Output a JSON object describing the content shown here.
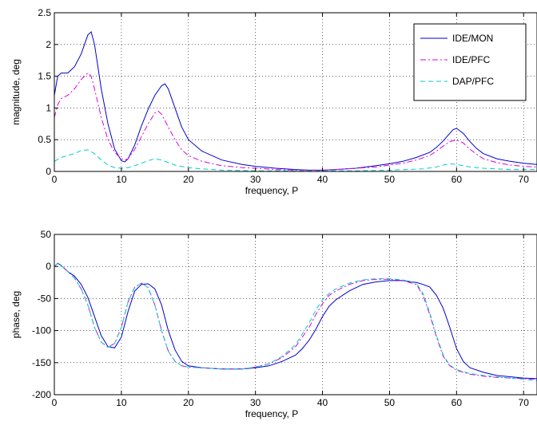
{
  "chart_data": [
    {
      "type": "line",
      "xlabel": "frequency, P",
      "ylabel": "magnitude, deg",
      "xlim": [
        0,
        72
      ],
      "ylim": [
        0,
        2.5
      ],
      "xticks": [
        0,
        10,
        20,
        30,
        40,
        50,
        60,
        70
      ],
      "yticks": [
        0,
        0.5,
        1,
        1.5,
        2,
        2.5
      ],
      "xtick_labels": [
        "0",
        "10",
        "20",
        "30",
        "40",
        "50",
        "60",
        "70"
      ],
      "ytick_labels": [
        "0",
        "0.5",
        "1",
        "1.5",
        "2",
        "2.5"
      ],
      "grid": true,
      "legend_position": "top-right",
      "series": [
        {
          "name": "IDE/MON",
          "color": "#0000cc",
          "dash": "solid",
          "x": [
            0,
            0.5,
            1,
            2,
            3,
            4,
            5,
            5.5,
            6,
            7,
            8,
            9,
            10,
            10.5,
            11,
            12,
            13,
            14,
            15,
            16,
            16.5,
            17,
            18,
            19,
            20,
            22,
            25,
            28,
            30,
            33,
            36,
            38,
            40,
            42,
            45,
            48,
            50,
            52,
            54,
            56,
            57,
            58,
            59,
            59.5,
            60,
            61,
            62,
            63,
            64,
            66,
            68,
            70,
            72
          ],
          "y": [
            1.2,
            1.5,
            1.55,
            1.55,
            1.65,
            1.85,
            2.15,
            2.2,
            2.0,
            1.3,
            0.75,
            0.35,
            0.17,
            0.15,
            0.2,
            0.42,
            0.72,
            0.98,
            1.2,
            1.35,
            1.38,
            1.3,
            1.0,
            0.7,
            0.5,
            0.32,
            0.18,
            0.11,
            0.08,
            0.05,
            0.03,
            0.02,
            0.02,
            0.03,
            0.05,
            0.09,
            0.12,
            0.16,
            0.22,
            0.3,
            0.38,
            0.48,
            0.6,
            0.66,
            0.68,
            0.6,
            0.47,
            0.36,
            0.28,
            0.2,
            0.16,
            0.13,
            0.11
          ]
        },
        {
          "name": "IDE/PFC",
          "color": "#dd00dd",
          "dash": "dashdot",
          "x": [
            0,
            0.5,
            1,
            2,
            3,
            4,
            5,
            5.5,
            6,
            7,
            8,
            9,
            10,
            10.5,
            11,
            12,
            13,
            14,
            15,
            15.5,
            16,
            17,
            18,
            19,
            20,
            22,
            25,
            28,
            30,
            33,
            36,
            38,
            40,
            42,
            45,
            48,
            50,
            52,
            54,
            56,
            57,
            58,
            59,
            60,
            61,
            62,
            63,
            64,
            66,
            68,
            70,
            72
          ],
          "y": [
            0.85,
            1.05,
            1.15,
            1.2,
            1.3,
            1.45,
            1.55,
            1.5,
            1.3,
            0.85,
            0.5,
            0.3,
            0.2,
            0.18,
            0.2,
            0.35,
            0.55,
            0.75,
            0.92,
            0.95,
            0.9,
            0.7,
            0.5,
            0.34,
            0.25,
            0.16,
            0.09,
            0.06,
            0.05,
            0.03,
            0.02,
            0.02,
            0.02,
            0.03,
            0.05,
            0.07,
            0.1,
            0.13,
            0.18,
            0.25,
            0.32,
            0.4,
            0.47,
            0.5,
            0.45,
            0.35,
            0.27,
            0.2,
            0.14,
            0.1,
            0.08,
            0.07
          ]
        },
        {
          "name": "DAP/PFC",
          "color": "#00cccc",
          "dash": "dashed",
          "x": [
            0,
            1,
            2,
            3,
            4,
            5,
            6,
            7,
            8,
            9,
            10,
            11,
            12,
            13,
            14,
            15,
            16,
            17,
            18,
            20,
            22,
            25,
            30,
            35,
            40,
            45,
            50,
            55,
            57,
            58,
            59,
            60,
            61,
            62,
            64,
            66,
            68,
            70,
            72
          ],
          "y": [
            0.16,
            0.22,
            0.25,
            0.28,
            0.33,
            0.34,
            0.28,
            0.18,
            0.1,
            0.06,
            0.05,
            0.06,
            0.09,
            0.13,
            0.17,
            0.2,
            0.18,
            0.14,
            0.1,
            0.06,
            0.04,
            0.02,
            0.01,
            0.01,
            0.01,
            0.01,
            0.02,
            0.04,
            0.07,
            0.1,
            0.12,
            0.11,
            0.09,
            0.07,
            0.05,
            0.04,
            0.03,
            0.03,
            0.03
          ]
        }
      ]
    },
    {
      "type": "line",
      "xlabel": "frequency, P",
      "ylabel": "phase, deg",
      "xlim": [
        0,
        72
      ],
      "ylim": [
        -200,
        50
      ],
      "xticks": [
        0,
        10,
        20,
        30,
        40,
        50,
        60,
        70
      ],
      "yticks": [
        -200,
        -150,
        -100,
        -50,
        0,
        50
      ],
      "xtick_labels": [
        "0",
        "10",
        "20",
        "30",
        "40",
        "50",
        "60",
        "70"
      ],
      "ytick_labels": [
        "-200",
        "-150",
        "-100",
        "-50",
        "0",
        "50"
      ],
      "grid": true,
      "series": [
        {
          "color": "#0000cc",
          "dash": "solid",
          "x": [
            0,
            0.5,
            1,
            2,
            3,
            4,
            5,
            6,
            7,
            8,
            9,
            10,
            11,
            12,
            13,
            14,
            15,
            16,
            17,
            18,
            19,
            20,
            22,
            25,
            28,
            30,
            32,
            34,
            36,
            37,
            38,
            39,
            40,
            41,
            42,
            44,
            46,
            48,
            50,
            52,
            54,
            55,
            56,
            57,
            58,
            59,
            60,
            61,
            62,
            64,
            66,
            68,
            70,
            72
          ],
          "y": [
            0,
            5,
            2,
            -8,
            -15,
            -28,
            -48,
            -78,
            -108,
            -125,
            -127,
            -110,
            -70,
            -38,
            -28,
            -27,
            -35,
            -60,
            -100,
            -130,
            -148,
            -155,
            -158,
            -160,
            -160,
            -158,
            -155,
            -148,
            -138,
            -128,
            -115,
            -98,
            -78,
            -62,
            -52,
            -38,
            -28,
            -24,
            -22,
            -22,
            -25,
            -28,
            -32,
            -45,
            -65,
            -95,
            -128,
            -148,
            -158,
            -165,
            -170,
            -172,
            -174,
            -175
          ]
        },
        {
          "color": "#dd00dd",
          "dash": "dashdot",
          "x": [
            0,
            0.5,
            1,
            2,
            3,
            4,
            5,
            6,
            7,
            8,
            9,
            10,
            11,
            12,
            13,
            14,
            15,
            16,
            17,
            18,
            19,
            20,
            22,
            25,
            28,
            30,
            32,
            34,
            36,
            37,
            38,
            39,
            40,
            41,
            42,
            44,
            46,
            48,
            50,
            52,
            54,
            55,
            56,
            57,
            58,
            59,
            60,
            62,
            64,
            66,
            68,
            70,
            72
          ],
          "y": [
            0,
            5,
            2,
            -8,
            -18,
            -35,
            -60,
            -95,
            -118,
            -126,
            -120,
            -95,
            -55,
            -32,
            -26,
            -33,
            -60,
            -100,
            -132,
            -148,
            -155,
            -157,
            -158,
            -160,
            -160,
            -157,
            -152,
            -142,
            -125,
            -110,
            -95,
            -75,
            -58,
            -45,
            -38,
            -28,
            -22,
            -20,
            -20,
            -22,
            -28,
            -45,
            -75,
            -110,
            -140,
            -155,
            -162,
            -168,
            -171,
            -173,
            -174,
            -175,
            -176
          ]
        },
        {
          "color": "#00cccc",
          "dash": "dashed",
          "x": [
            0,
            0.5,
            1,
            2,
            3,
            4,
            5,
            6,
            7,
            8,
            9,
            10,
            11,
            12,
            13,
            14,
            15,
            16,
            17,
            18,
            19,
            20,
            22,
            25,
            28,
            30,
            32,
            34,
            36,
            37,
            38,
            39,
            40,
            41,
            42,
            44,
            46,
            48,
            50,
            52,
            54,
            55,
            56,
            57,
            58,
            59,
            60,
            62,
            64,
            66,
            68,
            70,
            72
          ],
          "y": [
            0,
            5,
            2,
            -8,
            -18,
            -35,
            -60,
            -95,
            -118,
            -126,
            -120,
            -95,
            -55,
            -32,
            -26,
            -33,
            -60,
            -100,
            -132,
            -148,
            -155,
            -157,
            -158,
            -160,
            -160,
            -157,
            -152,
            -140,
            -122,
            -105,
            -88,
            -68,
            -52,
            -42,
            -35,
            -26,
            -21,
            -19,
            -19,
            -21,
            -26,
            -42,
            -72,
            -108,
            -138,
            -154,
            -161,
            -167,
            -170,
            -172,
            -174,
            -176,
            -178
          ]
        }
      ]
    }
  ]
}
